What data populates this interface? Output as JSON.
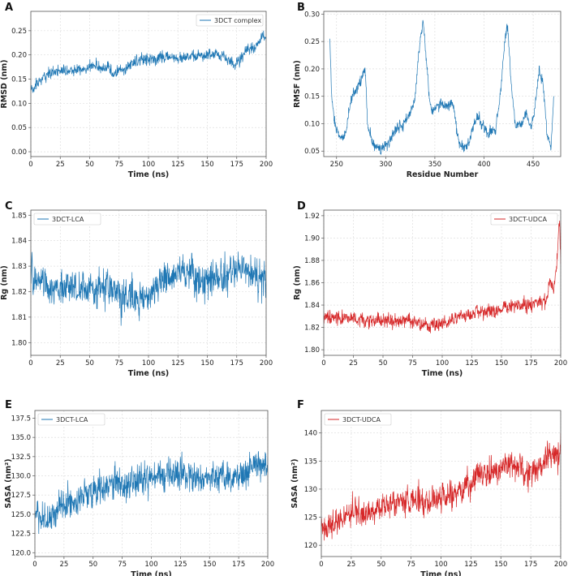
{
  "chart_data": [
    {
      "panel": "A",
      "type": "line",
      "xlabel": "Time (ns)",
      "ylabel": "RMSD (nm)",
      "xlim": [
        0,
        200
      ],
      "ylim": [
        -0.01,
        0.29
      ],
      "xticks": [
        0,
        25,
        50,
        75,
        100,
        125,
        150,
        175,
        200
      ],
      "yticks": [
        0.0,
        0.05,
        0.1,
        0.15,
        0.2,
        0.25
      ],
      "ytick_labels": [
        "0.00",
        "0.05",
        "0.10",
        "0.15",
        "0.20",
        "0.25"
      ],
      "grid": true,
      "legend": "top-right",
      "series": [
        {
          "name": "3DCT complex",
          "color": "#1f77b4",
          "noise": 0.01,
          "x": [
            0,
            3,
            8,
            15,
            25,
            35,
            45,
            55,
            62,
            66,
            70,
            78,
            85,
            95,
            105,
            115,
            125,
            135,
            145,
            155,
            165,
            172,
            178,
            185,
            192,
            197,
            200
          ],
          "y": [
            0.13,
            0.13,
            0.15,
            0.16,
            0.17,
            0.17,
            0.17,
            0.18,
            0.17,
            0.18,
            0.16,
            0.17,
            0.18,
            0.19,
            0.19,
            0.2,
            0.19,
            0.2,
            0.2,
            0.2,
            0.2,
            0.18,
            0.19,
            0.21,
            0.22,
            0.24,
            0.24
          ]
        }
      ]
    },
    {
      "panel": "B",
      "type": "line",
      "xlabel": "Residue Number",
      "ylabel": "RMSF (nm)",
      "xlim": [
        237,
        478
      ],
      "ylim": [
        0.04,
        0.305
      ],
      "xticks": [
        250,
        300,
        350,
        400,
        450
      ],
      "yticks": [
        0.05,
        0.1,
        0.15,
        0.2,
        0.25,
        0.3
      ],
      "ytick_labels": [
        "0.05",
        "0.10",
        "0.15",
        "0.20",
        "0.25",
        "0.30"
      ],
      "grid": true,
      "legend": "none",
      "series": [
        {
          "name": "",
          "color": "#1f77b4",
          "noise": 0.008,
          "x": [
            243,
            245,
            248,
            252,
            256,
            260,
            265,
            270,
            275,
            279,
            282,
            288,
            295,
            300,
            305,
            310,
            318,
            325,
            330,
            334,
            338,
            340,
            343,
            346,
            350,
            356,
            362,
            368,
            373,
            376,
            380,
            385,
            390,
            395,
            400,
            406,
            412,
            417,
            421,
            424,
            427,
            432,
            438,
            443,
            448,
            452,
            456,
            460,
            464,
            468,
            471
          ],
          "y": [
            0.26,
            0.15,
            0.1,
            0.08,
            0.07,
            0.09,
            0.15,
            0.16,
            0.18,
            0.2,
            0.09,
            0.06,
            0.055,
            0.06,
            0.07,
            0.09,
            0.1,
            0.12,
            0.15,
            0.24,
            0.29,
            0.25,
            0.18,
            0.12,
            0.13,
            0.14,
            0.13,
            0.14,
            0.08,
            0.06,
            0.055,
            0.07,
            0.1,
            0.11,
            0.09,
            0.08,
            0.09,
            0.16,
            0.25,
            0.28,
            0.19,
            0.09,
            0.1,
            0.12,
            0.09,
            0.13,
            0.2,
            0.17,
            0.08,
            0.06,
            0.15
          ]
        }
      ]
    },
    {
      "panel": "C",
      "type": "line",
      "xlabel": "Time (ns)",
      "ylabel": "Rg (nm)",
      "xlim": [
        0,
        200
      ],
      "ylim": [
        1.795,
        1.852
      ],
      "xticks": [
        0,
        25,
        50,
        75,
        100,
        125,
        150,
        175,
        200
      ],
      "yticks": [
        1.8,
        1.81,
        1.82,
        1.83,
        1.84,
        1.85
      ],
      "ytick_labels": [
        "1.80",
        "1.81",
        "1.82",
        "1.83",
        "1.84",
        "1.85"
      ],
      "grid": true,
      "legend": "top-left",
      "series": [
        {
          "name": "3DCT-LCA",
          "color": "#1f77b4",
          "noise": 0.0055,
          "x": [
            0,
            10,
            20,
            30,
            40,
            50,
            60,
            70,
            80,
            90,
            100,
            110,
            120,
            130,
            140,
            150,
            160,
            170,
            180,
            190,
            200
          ],
          "y": [
            1.826,
            1.824,
            1.82,
            1.822,
            1.821,
            1.821,
            1.822,
            1.82,
            1.818,
            1.817,
            1.818,
            1.824,
            1.827,
            1.828,
            1.826,
            1.824,
            1.824,
            1.826,
            1.829,
            1.826,
            1.825
          ]
        }
      ]
    },
    {
      "panel": "D",
      "type": "line",
      "xlabel": "Time (ns)",
      "ylabel": "Rg (nm)",
      "xlim": [
        0,
        200
      ],
      "ylim": [
        1.795,
        1.925
      ],
      "xticks": [
        0,
        25,
        50,
        75,
        100,
        125,
        150,
        175,
        200
      ],
      "yticks": [
        1.8,
        1.82,
        1.84,
        1.86,
        1.88,
        1.9,
        1.92
      ],
      "ytick_labels": [
        "1.80",
        "1.82",
        "1.84",
        "1.86",
        "1.88",
        "1.90",
        "1.92"
      ],
      "grid": true,
      "legend": "top-right",
      "series": [
        {
          "name": "3DCT-UDCA",
          "color": "#d62728",
          "noise": 0.005,
          "x": [
            0,
            10,
            25,
            40,
            55,
            70,
            85,
            95,
            105,
            115,
            125,
            135,
            145,
            155,
            165,
            175,
            183,
            188,
            191,
            194,
            196,
            198,
            199,
            200
          ],
          "y": [
            1.828,
            1.829,
            1.827,
            1.826,
            1.826,
            1.826,
            1.822,
            1.821,
            1.825,
            1.83,
            1.832,
            1.834,
            1.834,
            1.838,
            1.84,
            1.84,
            1.842,
            1.845,
            1.86,
            1.855,
            1.87,
            1.9,
            1.915,
            1.88
          ]
        }
      ]
    },
    {
      "panel": "E",
      "type": "line",
      "xlabel": "Time (ns)",
      "ylabel": "SASA (nm²)",
      "xlim": [
        0,
        200
      ],
      "ylim": [
        119.5,
        138.5
      ],
      "xticks": [
        0,
        25,
        50,
        75,
        100,
        125,
        150,
        175,
        200
      ],
      "yticks": [
        120.0,
        122.5,
        125.0,
        127.5,
        130.0,
        132.5,
        135.0,
        137.5
      ],
      "ytick_labels": [
        "120.0",
        "122.5",
        "125.0",
        "127.5",
        "130.0",
        "132.5",
        "135.0",
        "137.5"
      ],
      "grid": true,
      "legend": "top-left",
      "series": [
        {
          "name": "3DCT-LCA",
          "color": "#1f77b4",
          "noise": 1.6,
          "x": [
            0,
            10,
            20,
            30,
            40,
            50,
            60,
            70,
            80,
            90,
            100,
            110,
            120,
            130,
            140,
            150,
            160,
            170,
            180,
            190,
            200
          ],
          "y": [
            125.0,
            124.5,
            126.0,
            126.5,
            127.0,
            128.0,
            128.5,
            129.0,
            128.5,
            129.5,
            130.0,
            130.0,
            130.5,
            130.0,
            129.5,
            130.0,
            130.5,
            129.5,
            130.0,
            131.5,
            131.0
          ]
        }
      ]
    },
    {
      "panel": "F",
      "type": "line",
      "xlabel": "Time (ns)",
      "ylabel": "SASA (nm²)",
      "xlim": [
        0,
        200
      ],
      "ylim": [
        118,
        144
      ],
      "xticks": [
        0,
        25,
        50,
        75,
        100,
        125,
        150,
        175,
        200
      ],
      "yticks": [
        120,
        125,
        130,
        135,
        140
      ],
      "ytick_labels": [
        "120",
        "125",
        "130",
        "135",
        "140"
      ],
      "grid": true,
      "legend": "top-left",
      "series": [
        {
          "name": "3DCT-UDCA",
          "color": "#d62728",
          "noise": 2.0,
          "x": [
            0,
            10,
            20,
            30,
            40,
            50,
            60,
            70,
            80,
            90,
            100,
            110,
            120,
            130,
            140,
            150,
            160,
            170,
            180,
            190,
            195,
            200
          ],
          "y": [
            123.5,
            124.0,
            125.0,
            125.5,
            125.5,
            127.0,
            127.5,
            128.0,
            128.0,
            127.0,
            128.5,
            129.0,
            130.0,
            132.0,
            133.0,
            134.0,
            134.5,
            133.0,
            133.5,
            137.0,
            136.0,
            136.5
          ]
        }
      ]
    }
  ]
}
